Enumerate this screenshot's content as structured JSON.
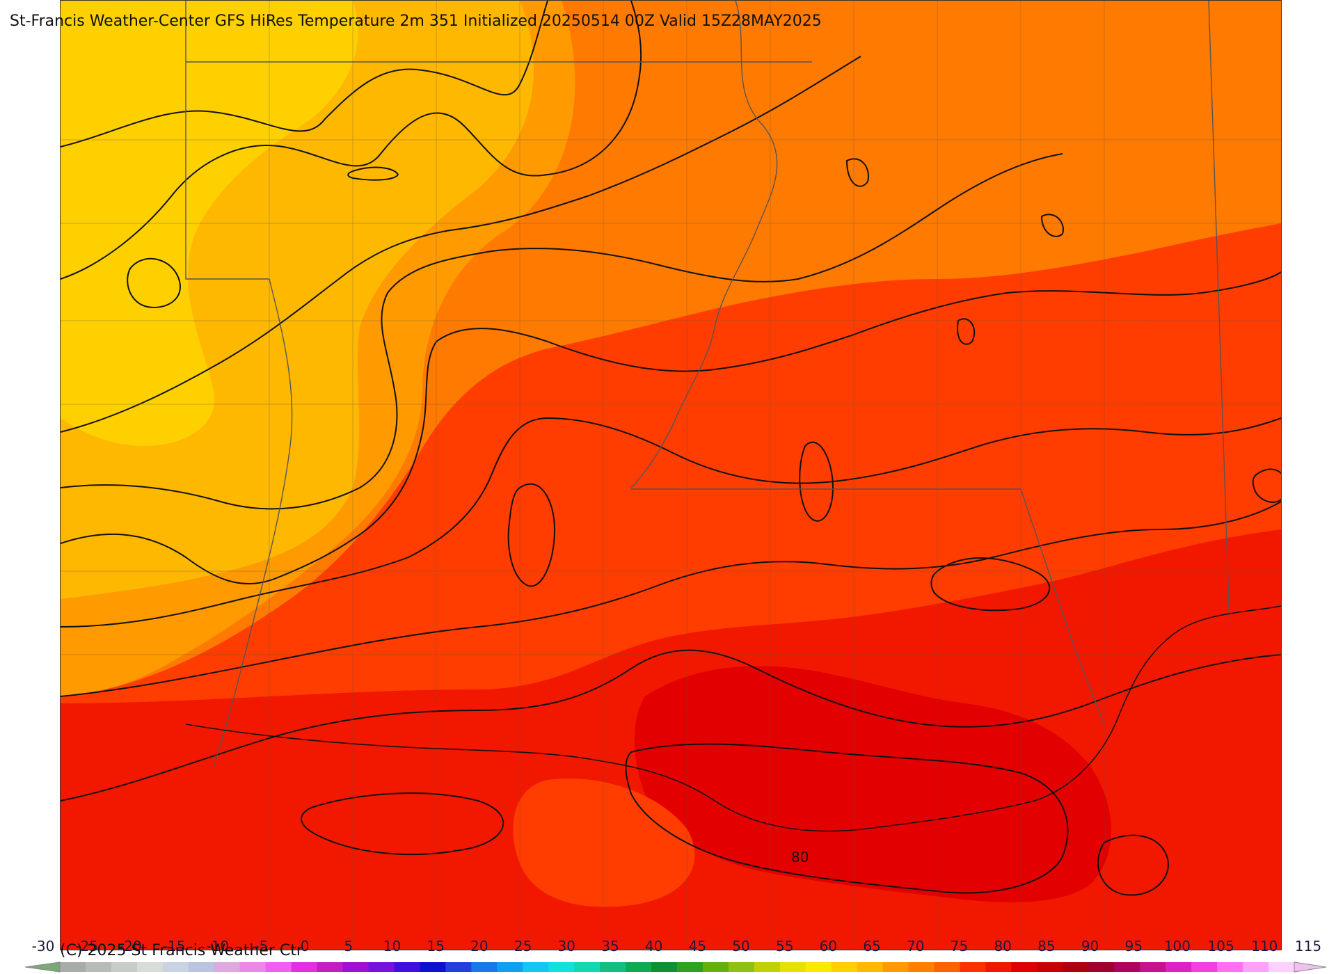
{
  "header": {
    "title": "St-Francis Weather-Center GFS HiRes Temperature 2m  351 Initialized 20250514 00Z Valid 15Z28MAY2025"
  },
  "footer": {
    "copyright": "(C) 2025 St Francis Weather Ctr"
  },
  "map": {
    "field": "Temperature 2m",
    "contour_labels": [
      {
        "text": "80"
      }
    ],
    "colors": {
      "temp_60": "#ffd000",
      "temp_65": "#ffb800",
      "temp_70": "#ff9a00",
      "temp_75": "#ff7a00",
      "temp_80": "#ff3d00",
      "temp_85": "#f21800",
      "temp_90": "#e20000",
      "contour_line": "#111111",
      "border_line": "#555555"
    }
  },
  "colorbar": {
    "labels": [
      "-30",
      "-25",
      "-20",
      "-15",
      "-10",
      "-5",
      "0",
      "5",
      "10",
      "15",
      "20",
      "25",
      "30",
      "35",
      "40",
      "45",
      "50",
      "55",
      "60",
      "65",
      "70",
      "75",
      "80",
      "85",
      "90",
      "95",
      "100",
      "105",
      "110",
      "115"
    ],
    "colors": [
      "#a8aca8",
      "#b8bcb8",
      "#c8ccc8",
      "#d8dcd8",
      "#c9d3e3",
      "#b8c4e0",
      "#e0a8e0",
      "#e888e8",
      "#f060f0",
      "#e030e0",
      "#c020c0",
      "#a010d0",
      "#7a10e0",
      "#4010e0",
      "#1010d0",
      "#2040e0",
      "#1a78e8",
      "#10a0f0",
      "#10c8f0",
      "#10e0e0",
      "#10d8b0",
      "#10c080",
      "#10a850",
      "#109030",
      "#30a020",
      "#60b010",
      "#90c010",
      "#c0d000",
      "#e8e000",
      "#ffe800",
      "#ffd000",
      "#ffb800",
      "#ff9a00",
      "#ff8000",
      "#ff6000",
      "#ff3000",
      "#f21800",
      "#e00000",
      "#c80000",
      "#b00010",
      "#a00030",
      "#b00060",
      "#c81090",
      "#e020c0",
      "#f040e0",
      "#ff70f0",
      "#ffa0ff",
      "#ffd0ff"
    ],
    "left_arrow_color": "#7aa878",
    "right_arrow_color": "#f0c0f0"
  }
}
